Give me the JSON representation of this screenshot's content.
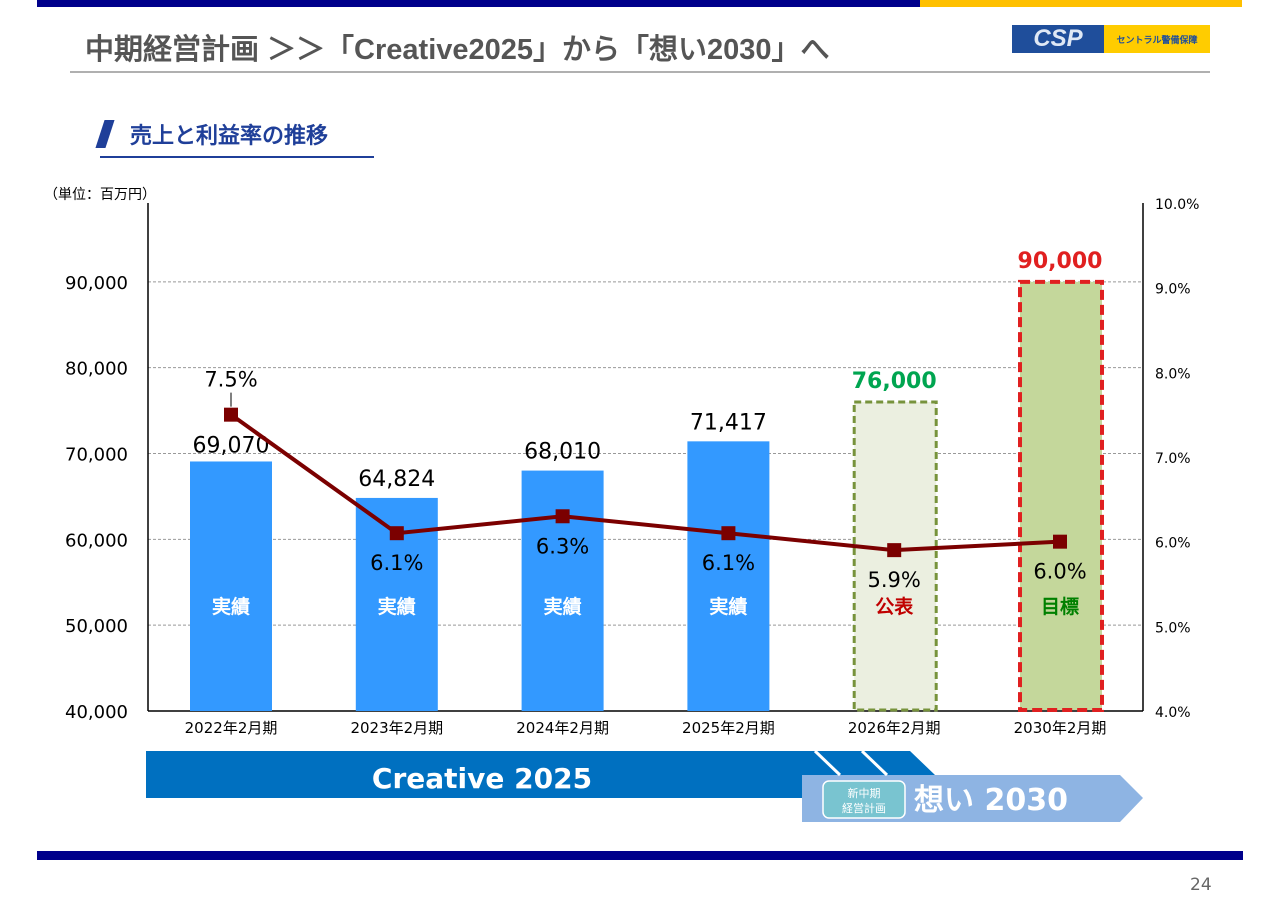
{
  "header": {
    "title": "中期経営計画 ＞＞「Creative2025」から「想い2030」へ",
    "logo_text": "CSP",
    "logo_name": "セントラル警備保障"
  },
  "section_title": "売上と利益率の推移",
  "page_number": "24",
  "banner": {
    "creative": "Creative 2025",
    "new_plan_badge_line1": "新中期",
    "new_plan_badge_line2": "経営計画",
    "omoi": "想い 2030"
  },
  "colors": {
    "actual": "#3399ff",
    "announce_fill": "#ebefe0",
    "announce_border": "#77933c",
    "target_fill": "#c4d79b",
    "target_border": "#e02020",
    "line": "#7b0000"
  },
  "chart_data": {
    "type": "bar",
    "unit_label": "（単位：百万円）",
    "categories": [
      "2022年2月期",
      "2023年2月期",
      "2024年2月期",
      "2025年2月期",
      "2026年2月期",
      "2030年2月期"
    ],
    "series": [
      {
        "name": "売上",
        "axis": "left",
        "values": [
          69070,
          64824,
          68010,
          71417,
          76000,
          90000
        ],
        "labels": [
          "69,070",
          "64,824",
          "68,010",
          "71,417",
          "76,000",
          "90,000"
        ]
      },
      {
        "name": "利益率",
        "type": "line",
        "axis": "right",
        "values": [
          7.5,
          6.1,
          6.3,
          6.1,
          5.9,
          6.0
        ],
        "labels": [
          "7.5%",
          "6.1%",
          "6.3%",
          "6.1%",
          "5.9%",
          "6.0%"
        ]
      }
    ],
    "bar_status": [
      "実績",
      "実績",
      "実績",
      "実績",
      "公表",
      "目標"
    ],
    "ylim": [
      40000,
      100000
    ],
    "y_ticks": [
      "40,000",
      "50,000",
      "60,000",
      "70,000",
      "80,000",
      "90,000"
    ],
    "y2lim": [
      4.0,
      10.0
    ],
    "y2_ticks": [
      "4.0%",
      "5.0%",
      "6.0%",
      "7.0%",
      "8.0%",
      "9.0%",
      "10.0%"
    ],
    "grid": true
  }
}
